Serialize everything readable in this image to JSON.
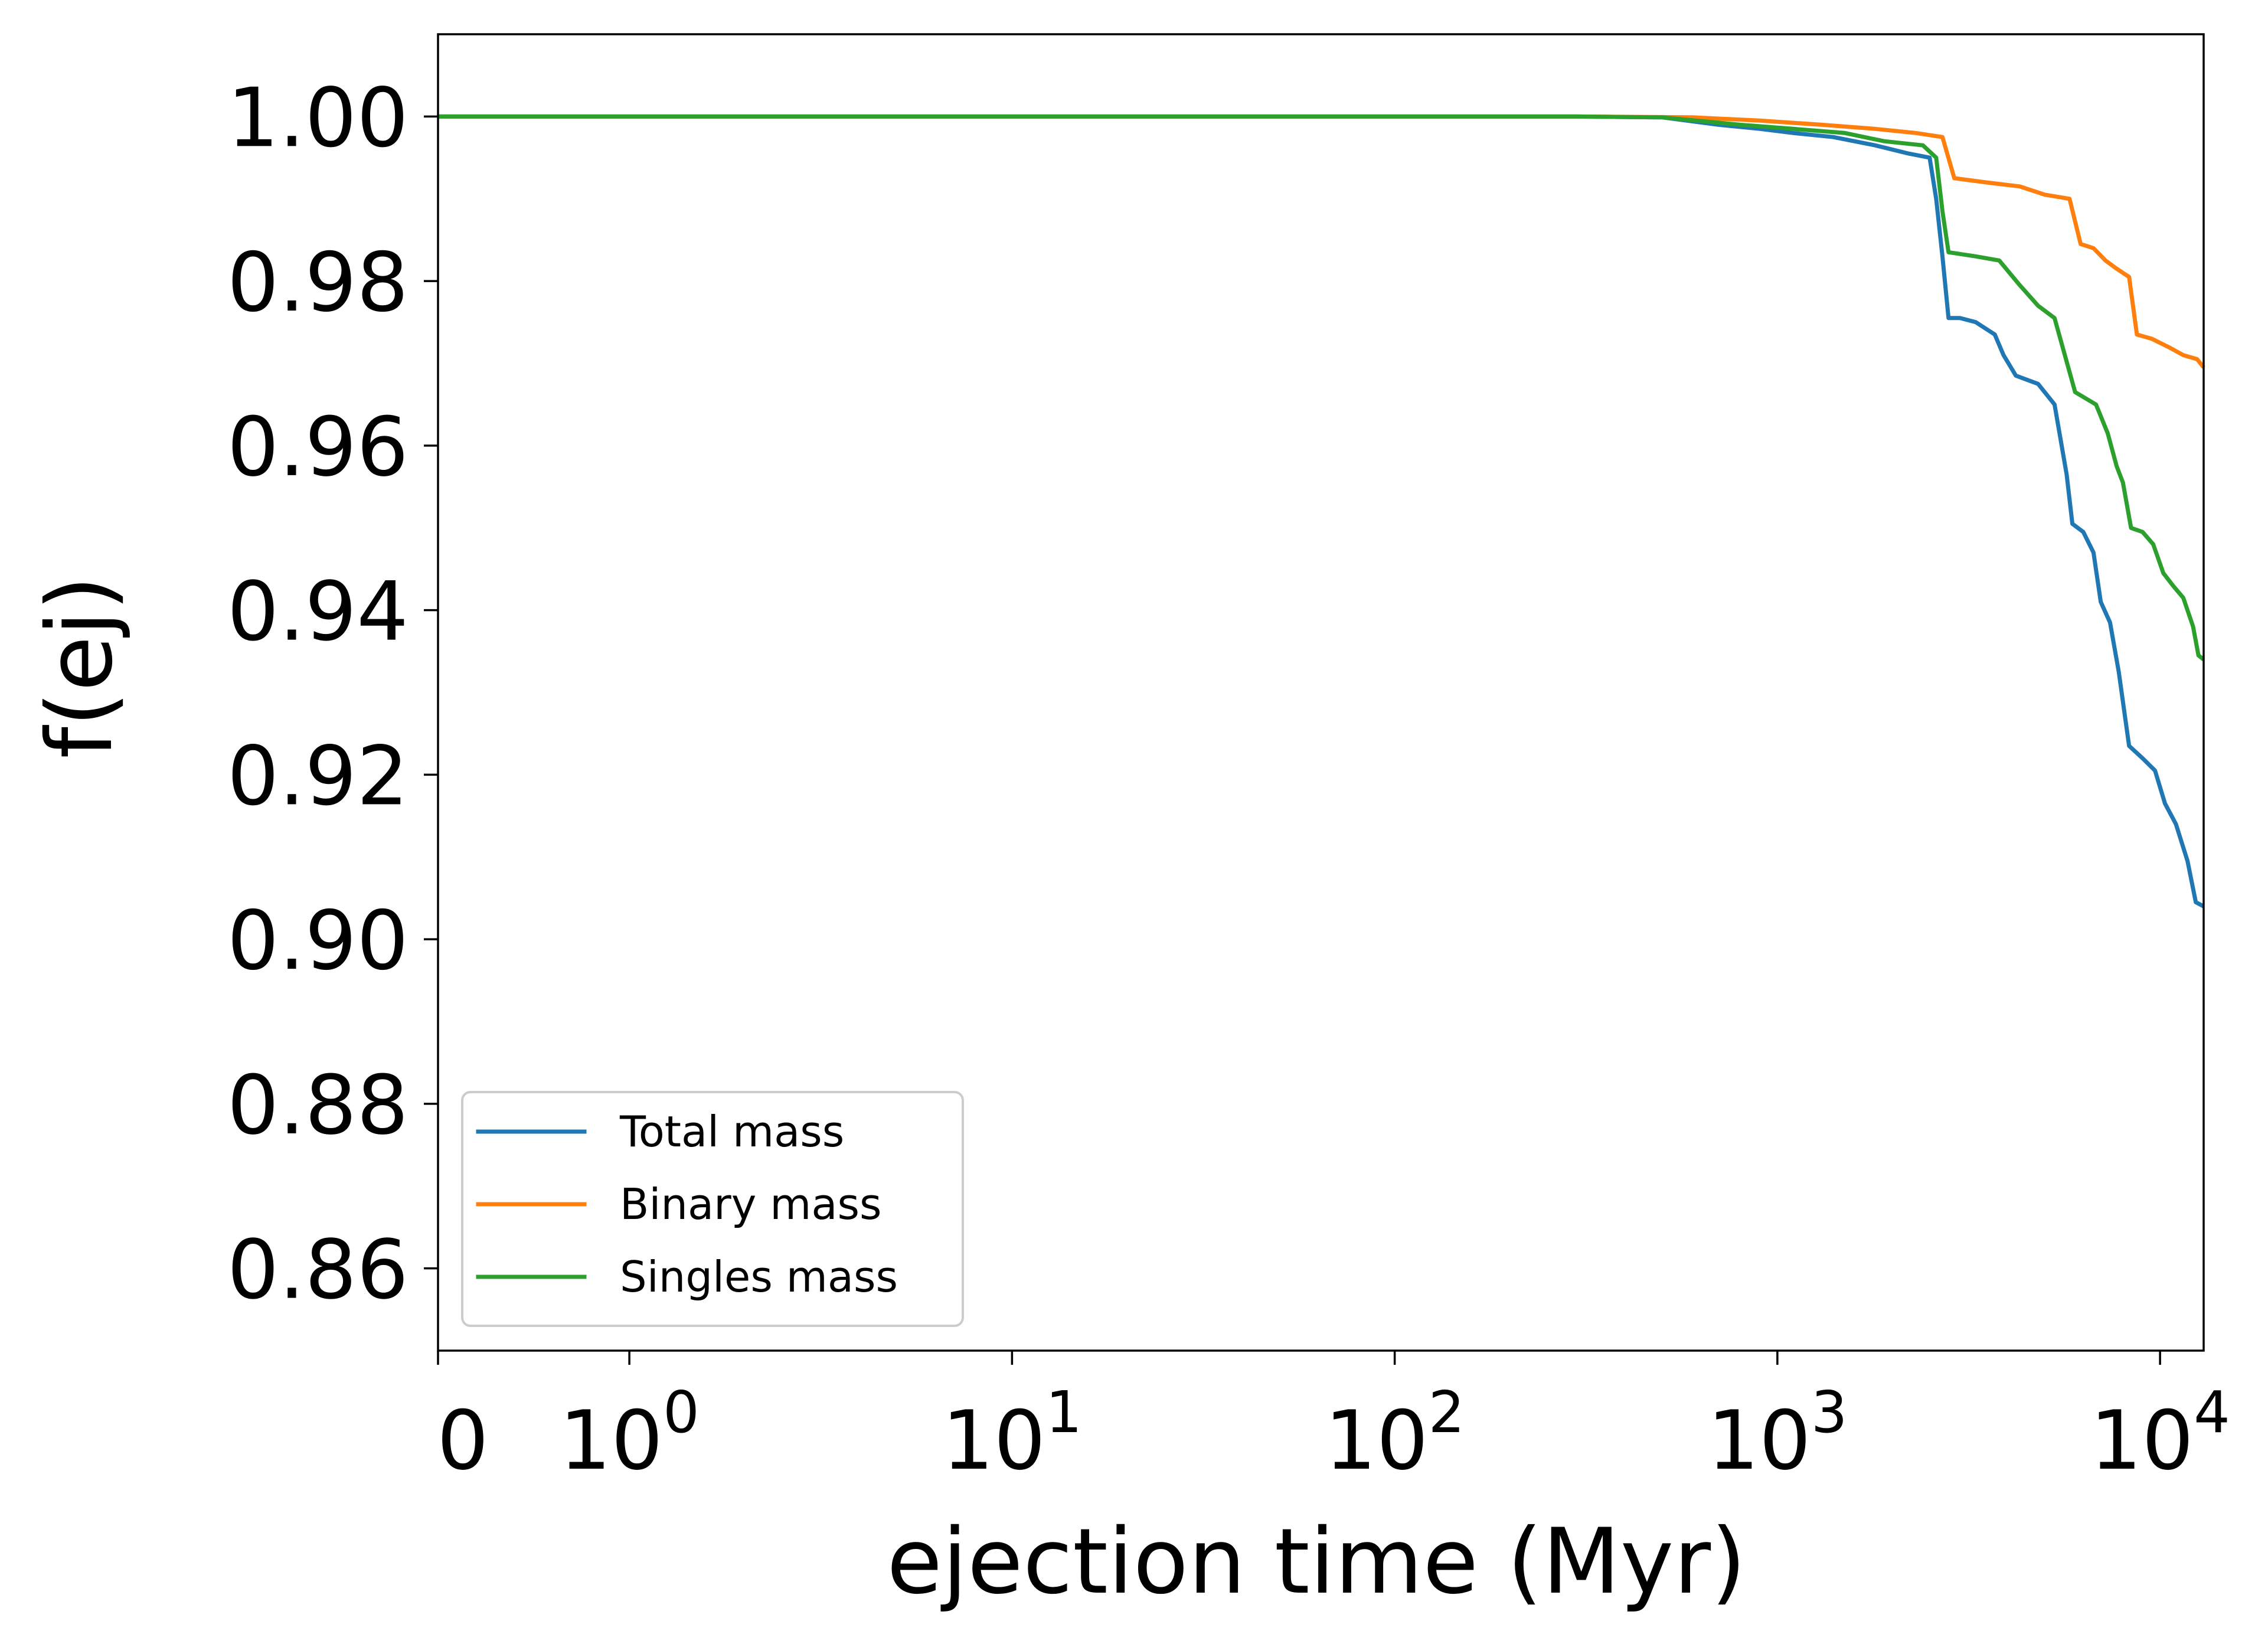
{
  "chart_data": {
    "type": "line",
    "title": "",
    "xlabel": "ejection time (Myr)",
    "ylabel": "f(ej)",
    "xscale": "symlog",
    "xlim": [
      0,
      13000
    ],
    "ylim": [
      0.85,
      1.01
    ],
    "grid": false,
    "legend_position": "lower-left",
    "x_ticks": [
      {
        "value": 0,
        "base": "0",
        "exp": ""
      },
      {
        "value": 1,
        "base": "10",
        "exp": "0"
      },
      {
        "value": 10,
        "base": "10",
        "exp": "1"
      },
      {
        "value": 100,
        "base": "10",
        "exp": "2"
      },
      {
        "value": 1000,
        "base": "10",
        "exp": "3"
      },
      {
        "value": 10000,
        "base": "10",
        "exp": "4"
      }
    ],
    "y_ticks": [
      {
        "value": 0.86,
        "label": "0.86"
      },
      {
        "value": 0.88,
        "label": "0.88"
      },
      {
        "value": 0.9,
        "label": "0.90"
      },
      {
        "value": 0.92,
        "label": "0.92"
      },
      {
        "value": 0.94,
        "label": "0.94"
      },
      {
        "value": 0.96,
        "label": "0.96"
      },
      {
        "value": 0.98,
        "label": "0.98"
      },
      {
        "value": 1.0,
        "label": "1.00"
      }
    ],
    "series": [
      {
        "name": "Total mass",
        "color": "#1f77b4",
        "points": [
          [
            0,
            1.0
          ],
          [
            300,
            1.0
          ],
          [
            500,
            0.9999
          ],
          [
            700,
            0.999
          ],
          [
            900,
            0.9985
          ],
          [
            1100,
            0.998
          ],
          [
            1400,
            0.9975
          ],
          [
            1800,
            0.9965
          ],
          [
            2200,
            0.9955
          ],
          [
            2500,
            0.995
          ],
          [
            2600,
            0.99
          ],
          [
            2700,
            0.983
          ],
          [
            2800,
            0.9755
          ],
          [
            3000,
            0.9755
          ],
          [
            3300,
            0.975
          ],
          [
            3700,
            0.9735
          ],
          [
            3900,
            0.971
          ],
          [
            4200,
            0.9685
          ],
          [
            4800,
            0.9675
          ],
          [
            5300,
            0.965
          ],
          [
            5700,
            0.9565
          ],
          [
            5900,
            0.9505
          ],
          [
            6300,
            0.9495
          ],
          [
            6700,
            0.947
          ],
          [
            7000,
            0.941
          ],
          [
            7400,
            0.9385
          ],
          [
            7800,
            0.9325
          ],
          [
            8300,
            0.9235
          ],
          [
            9000,
            0.922
          ],
          [
            9700,
            0.9205
          ],
          [
            10300,
            0.9165
          ],
          [
            11000,
            0.914
          ],
          [
            11800,
            0.9095
          ],
          [
            12400,
            0.9045
          ],
          [
            13000,
            0.904
          ]
        ]
      },
      {
        "name": "Binary mass",
        "color": "#ff7f0e",
        "points": [
          [
            0,
            1.0
          ],
          [
            300,
            1.0
          ],
          [
            600,
            0.9999
          ],
          [
            900,
            0.9995
          ],
          [
            1300,
            0.999
          ],
          [
            1800,
            0.9985
          ],
          [
            2300,
            0.998
          ],
          [
            2700,
            0.9975
          ],
          [
            2900,
            0.9925
          ],
          [
            3500,
            0.992
          ],
          [
            4300,
            0.9915
          ],
          [
            5000,
            0.9905
          ],
          [
            5800,
            0.99
          ],
          [
            6200,
            0.9845
          ],
          [
            6700,
            0.984
          ],
          [
            7200,
            0.9825
          ],
          [
            7700,
            0.9815
          ],
          [
            8300,
            0.9805
          ],
          [
            8700,
            0.9735
          ],
          [
            9500,
            0.973
          ],
          [
            10500,
            0.972
          ],
          [
            11500,
            0.971
          ],
          [
            12500,
            0.9705
          ],
          [
            13000,
            0.9695
          ]
        ]
      },
      {
        "name": "Singles mass",
        "color": "#2ca02c",
        "points": [
          [
            0,
            1.0
          ],
          [
            300,
            1.0
          ],
          [
            500,
            0.9999
          ],
          [
            800,
            0.999
          ],
          [
            1100,
            0.9985
          ],
          [
            1500,
            0.998
          ],
          [
            1900,
            0.997
          ],
          [
            2400,
            0.9965
          ],
          [
            2600,
            0.995
          ],
          [
            2700,
            0.9885
          ],
          [
            2800,
            0.9835
          ],
          [
            3300,
            0.983
          ],
          [
            3800,
            0.9825
          ],
          [
            4300,
            0.9795
          ],
          [
            4800,
            0.977
          ],
          [
            5300,
            0.9755
          ],
          [
            6000,
            0.9665
          ],
          [
            6800,
            0.965
          ],
          [
            7300,
            0.9615
          ],
          [
            7700,
            0.9575
          ],
          [
            8000,
            0.9555
          ],
          [
            8400,
            0.95
          ],
          [
            9000,
            0.9495
          ],
          [
            9600,
            0.948
          ],
          [
            10200,
            0.9445
          ],
          [
            10800,
            0.943
          ],
          [
            11500,
            0.9415
          ],
          [
            12200,
            0.938
          ],
          [
            12600,
            0.9345
          ],
          [
            13000,
            0.934
          ]
        ]
      }
    ]
  }
}
